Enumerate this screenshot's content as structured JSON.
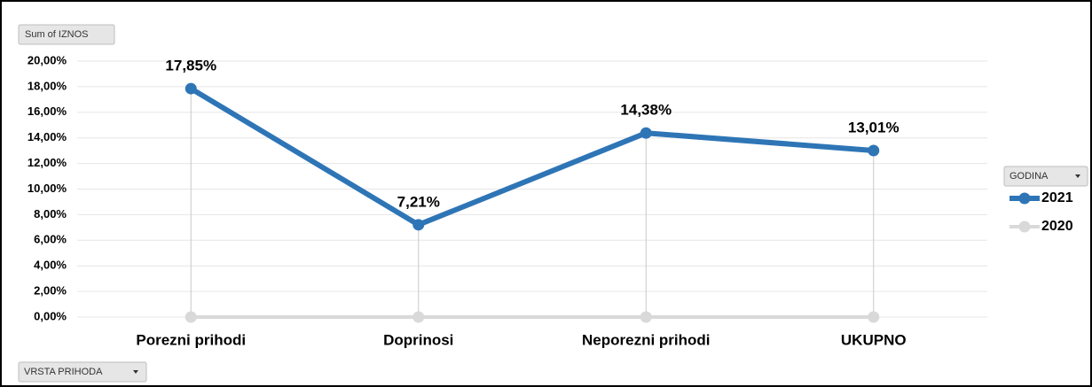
{
  "chart_data": {
    "type": "line",
    "value_field": "Sum of IZNOS",
    "axis_field": "VRSTA PRIHODA",
    "legend_field": "GODINA",
    "categories": [
      "Porezni prihodi",
      "Doprinosi",
      "Neporezni prihodi",
      "UKUPNO"
    ],
    "series": [
      {
        "name": "2021",
        "color": "#2e75b6",
        "values": [
          17.85,
          7.21,
          14.38,
          13.01
        ],
        "value_labels": [
          "17,85%",
          "7,21%",
          "14,38%",
          "13,01%"
        ]
      },
      {
        "name": "2020",
        "color": "#d9d9d9",
        "values": [
          0,
          0,
          0,
          0
        ]
      }
    ],
    "ylim": [
      0,
      20
    ],
    "yticks": [
      {
        "value": 0,
        "label": "0,00%"
      },
      {
        "value": 2,
        "label": "2,00%"
      },
      {
        "value": 4,
        "label": "4,00%"
      },
      {
        "value": 6,
        "label": "6,00%"
      },
      {
        "value": 8,
        "label": "8,00%"
      },
      {
        "value": 10,
        "label": "10,00%"
      },
      {
        "value": 12,
        "label": "12,00%"
      },
      {
        "value": 14,
        "label": "14,00%"
      },
      {
        "value": 16,
        "label": "16,00%"
      },
      {
        "value": 18,
        "label": "18,00%"
      },
      {
        "value": 20,
        "label": "20,00%"
      }
    ],
    "grid": true,
    "legend": "right"
  }
}
